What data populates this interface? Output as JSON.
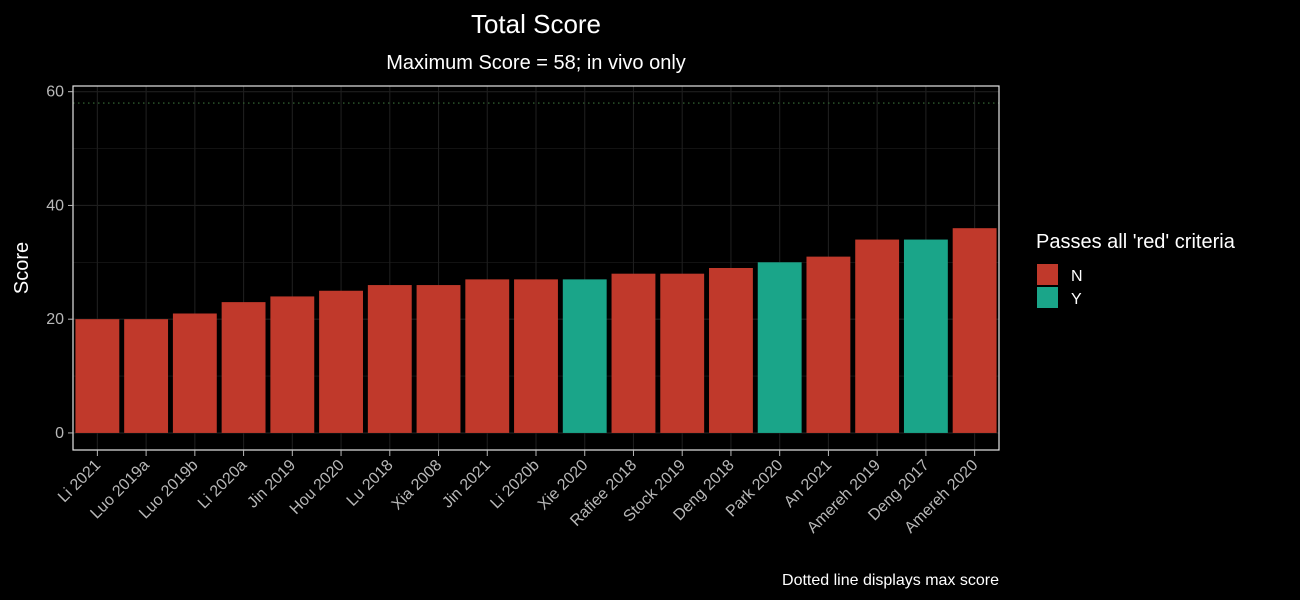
{
  "chart_data": {
    "type": "bar",
    "title": "Total Score",
    "subtitle": "Maximum Score = 58; in vivo only",
    "xlabel": "",
    "ylabel": "Score",
    "caption": "Dotted line displays max score",
    "ylim": [
      -3,
      61
    ],
    "yticks": [
      0,
      20,
      40,
      60
    ],
    "grid": true,
    "reference_line": {
      "y": 58,
      "style": "dotted",
      "color": "#2f5a2f"
    },
    "categories": [
      "Li 2021",
      "Luo 2019a",
      "Luo 2019b",
      "Li 2020a",
      "Jin 2019",
      "Hou 2020",
      "Lu 2018",
      "Xia 2008",
      "Jin 2021",
      "Li 2020b",
      "Xie 2020",
      "Rafiee 2018",
      "Stock 2019",
      "Deng 2018",
      "Park 2020",
      "An 2021",
      "Amereh 2019",
      "Deng 2017",
      "Amereh 2020"
    ],
    "values": [
      20,
      20,
      21,
      23,
      24,
      25,
      26,
      26,
      27,
      27,
      27,
      28,
      28,
      29,
      30,
      31,
      34,
      34,
      36
    ],
    "groups": [
      "N",
      "N",
      "N",
      "N",
      "N",
      "N",
      "N",
      "N",
      "N",
      "N",
      "Y",
      "N",
      "N",
      "N",
      "Y",
      "N",
      "N",
      "Y",
      "N"
    ],
    "legend": {
      "title": "Passes all 'red' criteria",
      "position": "right",
      "entries": [
        {
          "label": "N",
          "color": "#c0392b"
        },
        {
          "label": "Y",
          "color": "#1aa589"
        }
      ]
    },
    "colors": {
      "background": "#000000",
      "panel_border": "#e6e6e6",
      "grid": "#1e1e1e",
      "tick_text": "#b8b8b8",
      "N": "#c0392b",
      "Y": "#1aa589"
    }
  }
}
